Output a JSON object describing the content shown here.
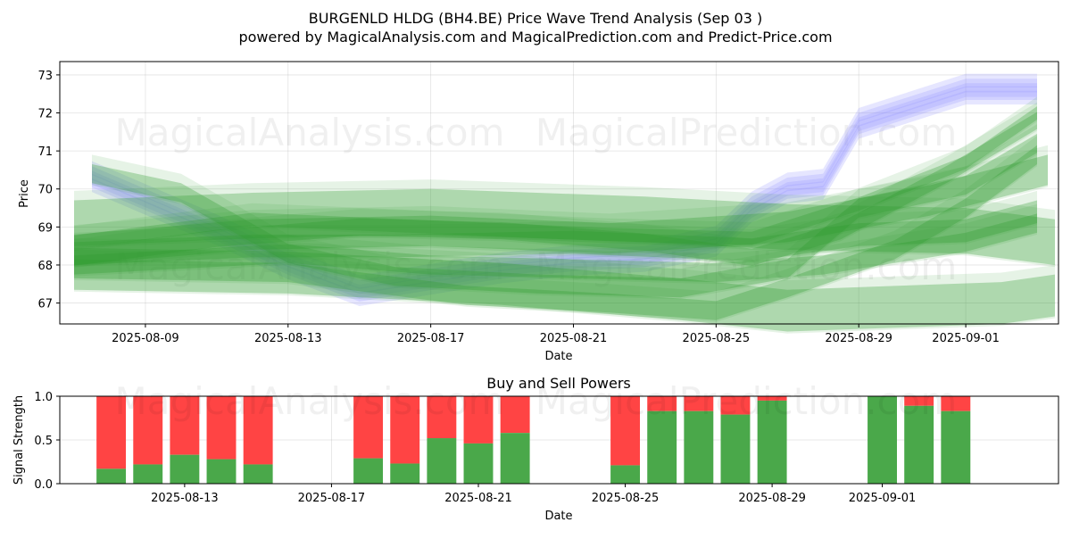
{
  "title_line1": "BURGENLD HLDG (BH4.BE) Price Wave Trend Analysis (Sep 03 )",
  "title_line2": "powered by MagicalAnalysis.com and MagicalPrediction.com and Predict-Price.com",
  "watermarks": [
    "MagicalAnalysis.com",
    "MagicalPrediction.com"
  ],
  "colors": {
    "sell": "#ff4444",
    "buy": "#4aa84a",
    "green_band": "#2e9b2e",
    "blue_band": "#8c8cff"
  },
  "chart_data": [
    {
      "type": "area",
      "title": "",
      "xlabel": "Date",
      "ylabel": "Price",
      "ylim": [
        66.45,
        73.35
      ],
      "xlim_days": [
        -0.4,
        27.6
      ],
      "x_origin": "2025-08-07",
      "grid": true,
      "xticks": [
        {
          "day": 2,
          "label": "2025-08-09"
        },
        {
          "day": 6,
          "label": "2025-08-13"
        },
        {
          "day": 10,
          "label": "2025-08-17"
        },
        {
          "day": 14,
          "label": "2025-08-21"
        },
        {
          "day": 18,
          "label": "2025-08-25"
        },
        {
          "day": 22,
          "label": "2025-08-29"
        },
        {
          "day": 25,
          "label": "2025-09-01"
        }
      ],
      "yticks": [
        67,
        68,
        69,
        70,
        71,
        72,
        73
      ],
      "blue_center": [
        [
          0.5,
          70.3
        ],
        [
          2,
          69.7
        ],
        [
          4,
          68.9
        ],
        [
          6,
          68.0
        ],
        [
          8,
          67.3
        ],
        [
          10,
          67.6
        ],
        [
          12,
          67.9
        ],
        [
          14,
          68.1
        ],
        [
          16,
          68.2
        ],
        [
          18,
          68.6
        ],
        [
          19,
          69.5
        ],
        [
          20,
          70.0
        ],
        [
          21,
          70.1
        ],
        [
          22,
          71.7
        ],
        [
          24,
          72.3
        ],
        [
          25,
          72.6
        ],
        [
          27,
          72.6
        ]
      ],
      "green_series": [
        {
          "name": "wave-1",
          "points": [
            [
              0,
              68.4
            ],
            [
              5,
              68.8
            ],
            [
              10,
              68.9
            ],
            [
              15,
              68.7
            ],
            [
              20,
              69.0
            ],
            [
              24,
              69.7
            ],
            [
              27.3,
              70.5
            ]
          ],
          "width": 0.8
        },
        {
          "name": "wave-2",
          "points": [
            [
              0,
              68.3
            ],
            [
              5,
              68.5
            ],
            [
              9,
              68.5
            ],
            [
              14,
              68.6
            ],
            [
              19,
              68.4
            ],
            [
              22,
              68.8
            ],
            [
              25,
              68.9
            ],
            [
              27,
              69.4
            ]
          ],
          "width": 0.6
        },
        {
          "name": "wave-3",
          "points": [
            [
              0,
              68.0
            ],
            [
              6,
              68.3
            ],
            [
              10,
              68.0
            ],
            [
              14,
              67.9
            ],
            [
              18,
              67.8
            ],
            [
              21,
              68.0
            ],
            [
              25,
              68.6
            ],
            [
              27,
              69.1
            ]
          ],
          "width": 0.5
        },
        {
          "name": "wave-4",
          "points": [
            [
              0.5,
              70.4
            ],
            [
              3,
              69.9
            ],
            [
              6,
              68.3
            ],
            [
              9,
              67.7
            ],
            [
              13,
              67.5
            ],
            [
              17,
              67.4
            ],
            [
              20,
              67.9
            ],
            [
              22,
              69.5
            ],
            [
              25,
              70.1
            ],
            [
              27,
              71.2
            ]
          ],
          "width": 0.5
        },
        {
          "name": "wave-5",
          "points": [
            [
              0,
              68.2
            ],
            [
              4,
              68.7
            ],
            [
              8,
              69.0
            ],
            [
              12,
              68.9
            ],
            [
              16,
              68.6
            ],
            [
              19,
              68.2
            ],
            [
              21.5,
              68.9
            ],
            [
              24.5,
              70.4
            ],
            [
              27,
              71.8
            ]
          ],
          "width": 0.45
        },
        {
          "name": "wave-6",
          "points": [
            [
              0,
              68.6
            ],
            [
              5,
              69.2
            ],
            [
              10,
              69.0
            ],
            [
              15,
              68.8
            ],
            [
              19,
              68.7
            ],
            [
              22,
              69.6
            ],
            [
              25,
              70.7
            ],
            [
              27,
              72.0
            ]
          ],
          "width": 0.35
        },
        {
          "name": "wave-7",
          "points": [
            [
              0,
              67.9
            ],
            [
              6,
              67.8
            ],
            [
              11,
              67.2
            ],
            [
              15,
              67.0
            ],
            [
              18,
              66.8
            ],
            [
              20,
              67.4
            ],
            [
              23,
              68.4
            ],
            [
              25,
              69.5
            ],
            [
              27,
              70.9
            ]
          ],
          "width": 0.5
        },
        {
          "name": "wave-8",
          "points": [
            [
              0,
              67.9
            ],
            [
              6,
              67.8
            ],
            [
              12,
              67.5
            ],
            [
              17,
              67.1
            ],
            [
              20,
              66.8
            ],
            [
              23,
              66.9
            ],
            [
              26,
              67.0
            ],
            [
              27.5,
              67.2
            ]
          ],
          "width": 1.1
        },
        {
          "name": "wave-9",
          "points": [
            [
              0,
              69.1
            ],
            [
              5,
              69.3
            ],
            [
              10,
              69.4
            ],
            [
              16,
              69.2
            ],
            [
              20,
              69.0
            ],
            [
              25,
              68.9
            ],
            [
              27.5,
              68.6
            ]
          ],
          "width": 1.2
        }
      ]
    },
    {
      "type": "bar",
      "title": "Buy and Sell Powers",
      "xlabel": "Date",
      "ylabel": "Signal Strength",
      "ylim": [
        0,
        1
      ],
      "xlim_days": [
        -0.4,
        26.8
      ],
      "x_origin": "2025-08-10",
      "xticks": [
        {
          "day": 3,
          "label": "2025-08-13"
        },
        {
          "day": 7,
          "label": "2025-08-17"
        },
        {
          "day": 11,
          "label": "2025-08-21"
        },
        {
          "day": 15,
          "label": "2025-08-25"
        },
        {
          "day": 19,
          "label": "2025-08-29"
        },
        {
          "day": 22,
          "label": "2025-09-01"
        }
      ],
      "yticks": [
        0.0,
        0.5,
        1.0
      ],
      "bars": [
        {
          "day": 1,
          "buy": 0.17
        },
        {
          "day": 2,
          "buy": 0.22
        },
        {
          "day": 3,
          "buy": 0.33
        },
        {
          "day": 4,
          "buy": 0.28
        },
        {
          "day": 5,
          "buy": 0.22
        },
        {
          "day": 8,
          "buy": 0.29
        },
        {
          "day": 9,
          "buy": 0.23
        },
        {
          "day": 10,
          "buy": 0.52
        },
        {
          "day": 11,
          "buy": 0.46
        },
        {
          "day": 12,
          "buy": 0.58
        },
        {
          "day": 15,
          "buy": 0.21
        },
        {
          "day": 16,
          "buy": 0.83
        },
        {
          "day": 17,
          "buy": 0.83
        },
        {
          "day": 18,
          "buy": 0.79
        },
        {
          "day": 19,
          "buy": 0.95
        },
        {
          "day": 22,
          "buy": 1.0
        },
        {
          "day": 23,
          "buy": 0.89
        },
        {
          "day": 24,
          "buy": 0.83
        }
      ]
    }
  ]
}
